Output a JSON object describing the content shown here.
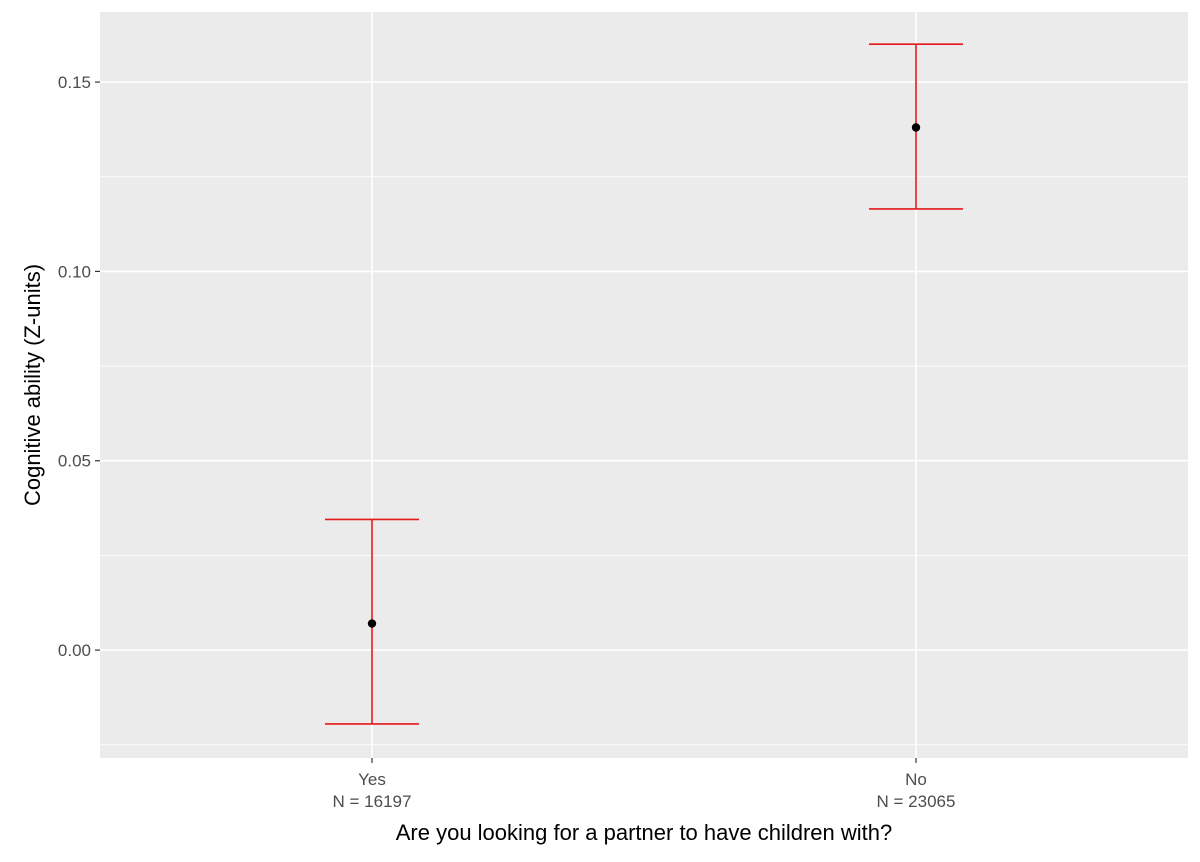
{
  "chart_data": {
    "type": "scatter",
    "subtype": "point-with-errorbars",
    "title": "",
    "xlabel": "Are you looking for a partner to have children with?",
    "ylabel": "Cognitive ability (Z-units)",
    "categories": [
      {
        "label": "Yes",
        "sublabel": "N = 16197"
      },
      {
        "label": "No",
        "sublabel": "N = 23065"
      }
    ],
    "values": [
      0.007,
      0.138
    ],
    "error_low": [
      -0.0195,
      0.1165
    ],
    "error_high": [
      0.0345,
      0.16
    ],
    "ylim": [
      -0.0285,
      0.1685
    ],
    "yticks": [
      0.0,
      0.05,
      0.1,
      0.15
    ],
    "ytick_labels": [
      "0.00",
      "0.05",
      "0.10",
      "0.15"
    ],
    "grid": true,
    "legend": "none",
    "colors": {
      "panel_background": "#ebebeb",
      "grid": "#ffffff",
      "point": "#000000",
      "errorbar": "#e41a1c",
      "tick_text": "#4d4d4d",
      "axis_title": "#000000"
    }
  }
}
